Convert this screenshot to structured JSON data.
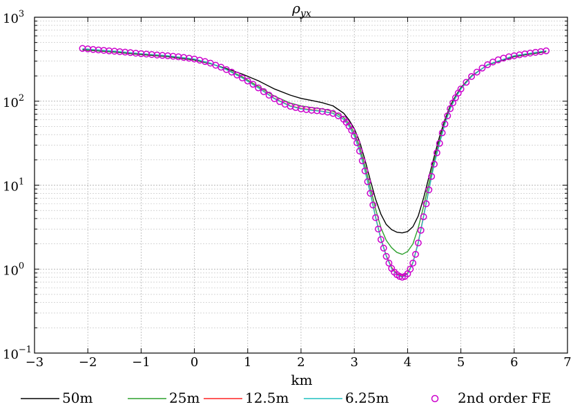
{
  "chart_data": {
    "type": "line",
    "title": "ρyx",
    "title_symbol": "ρ",
    "title_subscript": "yx",
    "xlabel": "km",
    "ylabel": "",
    "xlim": [
      -3,
      7
    ],
    "ylim": [
      0.1,
      1000
    ],
    "yscale": "log",
    "grid": true,
    "legend_position": "bottom-outside",
    "x_ticks": [
      {
        "value": -3,
        "label": "−3"
      },
      {
        "value": -2,
        "label": "−2"
      },
      {
        "value": -1,
        "label": "−1"
      },
      {
        "value": 0,
        "label": "0"
      },
      {
        "value": 1,
        "label": "1"
      },
      {
        "value": 2,
        "label": "2"
      },
      {
        "value": 3,
        "label": "3"
      },
      {
        "value": 4,
        "label": "4"
      },
      {
        "value": 5,
        "label": "5"
      },
      {
        "value": 6,
        "label": "6"
      },
      {
        "value": 7,
        "label": "7"
      }
    ],
    "y_ticks": [
      {
        "value": 0.1,
        "base": "10",
        "exp": "−1"
      },
      {
        "value": 1,
        "base": "10",
        "exp": "0"
      },
      {
        "value": 10,
        "base": "10",
        "exp": "1"
      },
      {
        "value": 100,
        "base": "10",
        "exp": "2"
      },
      {
        "value": 1000,
        "base": "10",
        "exp": "3"
      }
    ],
    "series": [
      {
        "name": "50m",
        "color": "#000000",
        "style": "line",
        "x": [
          -2.1,
          -1.5,
          -1.0,
          -0.5,
          0.0,
          0.3,
          0.6,
          0.9,
          1.2,
          1.5,
          1.8,
          2.0,
          2.2,
          2.4,
          2.6,
          2.8,
          2.9,
          3.0,
          3.1,
          3.2,
          3.3,
          3.4,
          3.5,
          3.6,
          3.7,
          3.8,
          3.9,
          4.0,
          4.1,
          4.2,
          4.3,
          4.4,
          4.5,
          4.6,
          4.7,
          4.8,
          4.9,
          5.0,
          5.2,
          5.5,
          6.0,
          6.6
        ],
        "y": [
          410,
          385,
          360,
          340,
          310,
          280,
          245,
          210,
          175,
          140,
          118,
          108,
          102,
          96,
          88,
          72,
          60,
          47,
          33,
          20,
          11.5,
          6.8,
          4.5,
          3.4,
          2.95,
          2.75,
          2.7,
          2.8,
          3.2,
          4.3,
          7.0,
          12.5,
          22,
          38,
          60,
          88,
          115,
          145,
          200,
          270,
          340,
          390
        ]
      },
      {
        "name": "25m",
        "color": "#2ca02c",
        "style": "line",
        "x": [
          -2.1,
          -1.5,
          -1.0,
          -0.5,
          0.0,
          0.3,
          0.6,
          0.9,
          1.2,
          1.5,
          1.8,
          2.0,
          2.2,
          2.4,
          2.6,
          2.8,
          2.9,
          3.0,
          3.1,
          3.2,
          3.3,
          3.4,
          3.5,
          3.6,
          3.7,
          3.8,
          3.9,
          4.0,
          4.1,
          4.2,
          4.3,
          4.4,
          4.5,
          4.6,
          4.7,
          4.8,
          4.9,
          5.0,
          5.2,
          5.5,
          6.0,
          6.6
        ],
        "y": [
          415,
          390,
          365,
          345,
          315,
          282,
          240,
          195,
          150,
          115,
          95,
          88,
          84,
          81,
          76,
          64,
          54,
          42,
          29,
          17,
          9.5,
          5.2,
          3.1,
          2.2,
          1.8,
          1.58,
          1.5,
          1.62,
          2.0,
          3.1,
          5.6,
          10.5,
          19.5,
          34,
          56,
          84,
          112,
          142,
          198,
          272,
          345,
          395
        ]
      },
      {
        "name": "12.5m",
        "color": "#ff2020",
        "style": "line",
        "x": [
          -2.1,
          -1.5,
          -1.0,
          -0.5,
          0.0,
          0.3,
          0.6,
          0.9,
          1.2,
          1.5,
          1.8,
          2.0,
          2.2,
          2.4,
          2.6,
          2.8,
          2.9,
          3.0,
          3.1,
          3.2,
          3.3,
          3.4,
          3.5,
          3.6,
          3.7,
          3.8,
          3.9,
          4.0,
          4.1,
          4.2,
          4.3,
          4.4,
          4.5,
          4.6,
          4.7,
          4.8,
          4.9,
          5.0,
          5.2,
          5.5,
          6.0,
          6.6
        ],
        "y": [
          420,
          393,
          367,
          347,
          317,
          283,
          238,
          190,
          145,
          108,
          88,
          82,
          79,
          76,
          72,
          61,
          51,
          39,
          26,
          15,
          8.2,
          4.2,
          2.3,
          1.45,
          1.05,
          0.88,
          0.82,
          0.9,
          1.2,
          2.1,
          4.3,
          9.0,
          18,
          32,
          54,
          82,
          110,
          140,
          197,
          272,
          347,
          397
        ]
      },
      {
        "name": "6.25m",
        "color": "#1fbfbf",
        "style": "line",
        "x": [
          -2.1,
          -1.5,
          -1.0,
          -0.5,
          0.0,
          0.3,
          0.6,
          0.9,
          1.2,
          1.5,
          1.8,
          2.0,
          2.2,
          2.4,
          2.6,
          2.8,
          2.9,
          3.0,
          3.1,
          3.2,
          3.3,
          3.4,
          3.5,
          3.6,
          3.7,
          3.8,
          3.9,
          4.0,
          4.1,
          4.2,
          4.3,
          4.4,
          4.5,
          4.6,
          4.7,
          4.8,
          4.9,
          5.0,
          5.2,
          5.5,
          6.0,
          6.6
        ],
        "y": [
          421,
          394,
          368,
          348,
          318,
          284,
          238,
          189,
          144,
          107,
          87,
          81,
          78,
          75.5,
          71.5,
          61,
          50.5,
          38.5,
          25.5,
          14.8,
          8.0,
          4.1,
          2.25,
          1.42,
          1.02,
          0.86,
          0.8,
          0.88,
          1.18,
          2.05,
          4.2,
          8.8,
          17.8,
          31.5,
          53.5,
          81.5,
          110,
          140,
          197,
          272,
          348,
          398
        ]
      },
      {
        "name": "2nd order FE",
        "color": "#cc00cc",
        "style": "markers",
        "x": [
          -2.1,
          -2.0,
          -1.9,
          -1.8,
          -1.7,
          -1.6,
          -1.5,
          -1.4,
          -1.3,
          -1.2,
          -1.1,
          -1.0,
          -0.9,
          -0.8,
          -0.7,
          -0.6,
          -0.5,
          -0.4,
          -0.3,
          -0.2,
          -0.1,
          0.0,
          0.1,
          0.2,
          0.3,
          0.4,
          0.5,
          0.6,
          0.7,
          0.8,
          0.9,
          1.0,
          1.1,
          1.2,
          1.3,
          1.4,
          1.5,
          1.6,
          1.7,
          1.8,
          1.9,
          2.0,
          2.1,
          2.2,
          2.3,
          2.4,
          2.5,
          2.6,
          2.7,
          2.8,
          2.85,
          2.9,
          2.95,
          3.0,
          3.05,
          3.1,
          3.15,
          3.2,
          3.25,
          3.3,
          3.35,
          3.4,
          3.45,
          3.5,
          3.55,
          3.6,
          3.65,
          3.7,
          3.75,
          3.8,
          3.85,
          3.9,
          3.95,
          4.0,
          4.05,
          4.1,
          4.15,
          4.2,
          4.25,
          4.3,
          4.35,
          4.4,
          4.45,
          4.5,
          4.55,
          4.6,
          4.65,
          4.7,
          4.75,
          4.8,
          4.85,
          4.9,
          4.95,
          5.0,
          5.1,
          5.2,
          5.3,
          5.4,
          5.5,
          5.6,
          5.7,
          5.8,
          5.9,
          6.0,
          6.1,
          6.2,
          6.3,
          6.4,
          6.5,
          6.6
        ],
        "y": [
          425,
          419,
          413,
          408,
          403,
          398,
          394,
          389,
          384,
          379,
          373,
          368,
          364,
          360,
          355,
          351,
          348,
          343,
          338,
          332,
          325,
          318,
          308,
          297,
          284,
          268,
          254,
          238,
          222,
          205,
          189,
          174,
          159,
          144,
          130,
          118,
          107,
          99,
          92,
          87,
          84,
          81,
          79.5,
          78,
          77,
          75.5,
          74,
          71.5,
          67,
          61,
          56,
          50.5,
          45,
          38.5,
          32,
          25.5,
          19.5,
          14.8,
          11.0,
          8.0,
          5.8,
          4.1,
          3.0,
          2.25,
          1.78,
          1.42,
          1.18,
          1.02,
          0.92,
          0.86,
          0.82,
          0.8,
          0.82,
          0.88,
          1.0,
          1.18,
          1.5,
          2.05,
          2.9,
          4.2,
          6.0,
          8.8,
          12.7,
          17.8,
          24.3,
          31.5,
          42,
          53.5,
          67,
          81.5,
          95.5,
          110,
          125,
          140,
          168,
          197,
          222,
          248,
          272,
          293,
          311,
          326,
          338,
          348,
          357,
          366,
          374,
          382,
          390,
          398
        ]
      }
    ]
  }
}
